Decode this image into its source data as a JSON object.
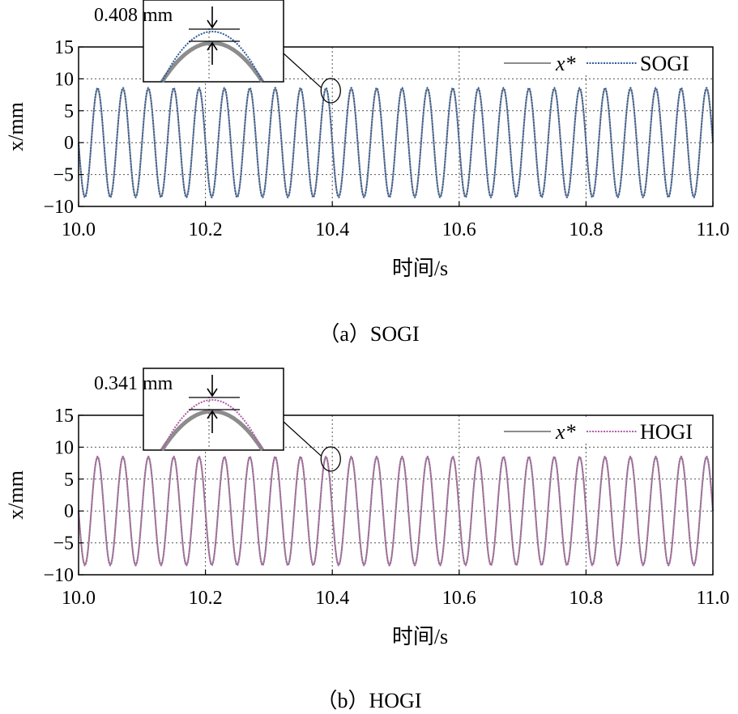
{
  "chart_data": [
    {
      "type": "line",
      "panel": "a",
      "caption": "（a）SOGI",
      "xlabel": "时间/s",
      "ylabel": "x/mm",
      "xlim": [
        10.0,
        11.0
      ],
      "ylim": [
        -10,
        15
      ],
      "xticks": [
        "10.0",
        "10.2",
        "10.4",
        "10.6",
        "10.8",
        "11.0"
      ],
      "yticks": [
        "−10",
        "−5",
        "0",
        "5",
        "10",
        "15"
      ],
      "grid": true,
      "legend_position": "top-right",
      "signal": {
        "frequency_hz": 25,
        "amplitude_mm": 8.4,
        "phase_start": "decreasing"
      },
      "series": [
        {
          "name": "x*",
          "style": "solid",
          "color": "#8c8c8c",
          "amplitude_mm": 8.4
        },
        {
          "name": "SOGI",
          "style": "dotted",
          "color": "#2c5aa0",
          "amplitude_mm": 8.6
        }
      ],
      "inset": {
        "annotation": "0.408 mm",
        "zoom_center_x": 10.395,
        "zoom_center_y": 8.4
      }
    },
    {
      "type": "line",
      "panel": "b",
      "caption": "（b）HOGI",
      "xlabel": "时间/s",
      "ylabel": "x/mm",
      "xlim": [
        10.0,
        11.0
      ],
      "ylim": [
        -10,
        15
      ],
      "xticks": [
        "10.0",
        "10.2",
        "10.4",
        "10.6",
        "10.8",
        "11.0"
      ],
      "yticks": [
        "−10",
        "−5",
        "0",
        "5",
        "10",
        "15"
      ],
      "grid": true,
      "legend_position": "top-right",
      "signal": {
        "frequency_hz": 25,
        "amplitude_mm": 8.4,
        "phase_start": "decreasing"
      },
      "series": [
        {
          "name": "x*",
          "style": "solid",
          "color": "#8c8c8c",
          "amplitude_mm": 8.4
        },
        {
          "name": "HOGI",
          "style": "dotted",
          "color": "#b05ca8",
          "amplitude_mm": 8.55
        }
      ],
      "inset": {
        "annotation": "0.341 mm",
        "zoom_center_x": 10.395,
        "zoom_center_y": 8.4
      }
    }
  ]
}
